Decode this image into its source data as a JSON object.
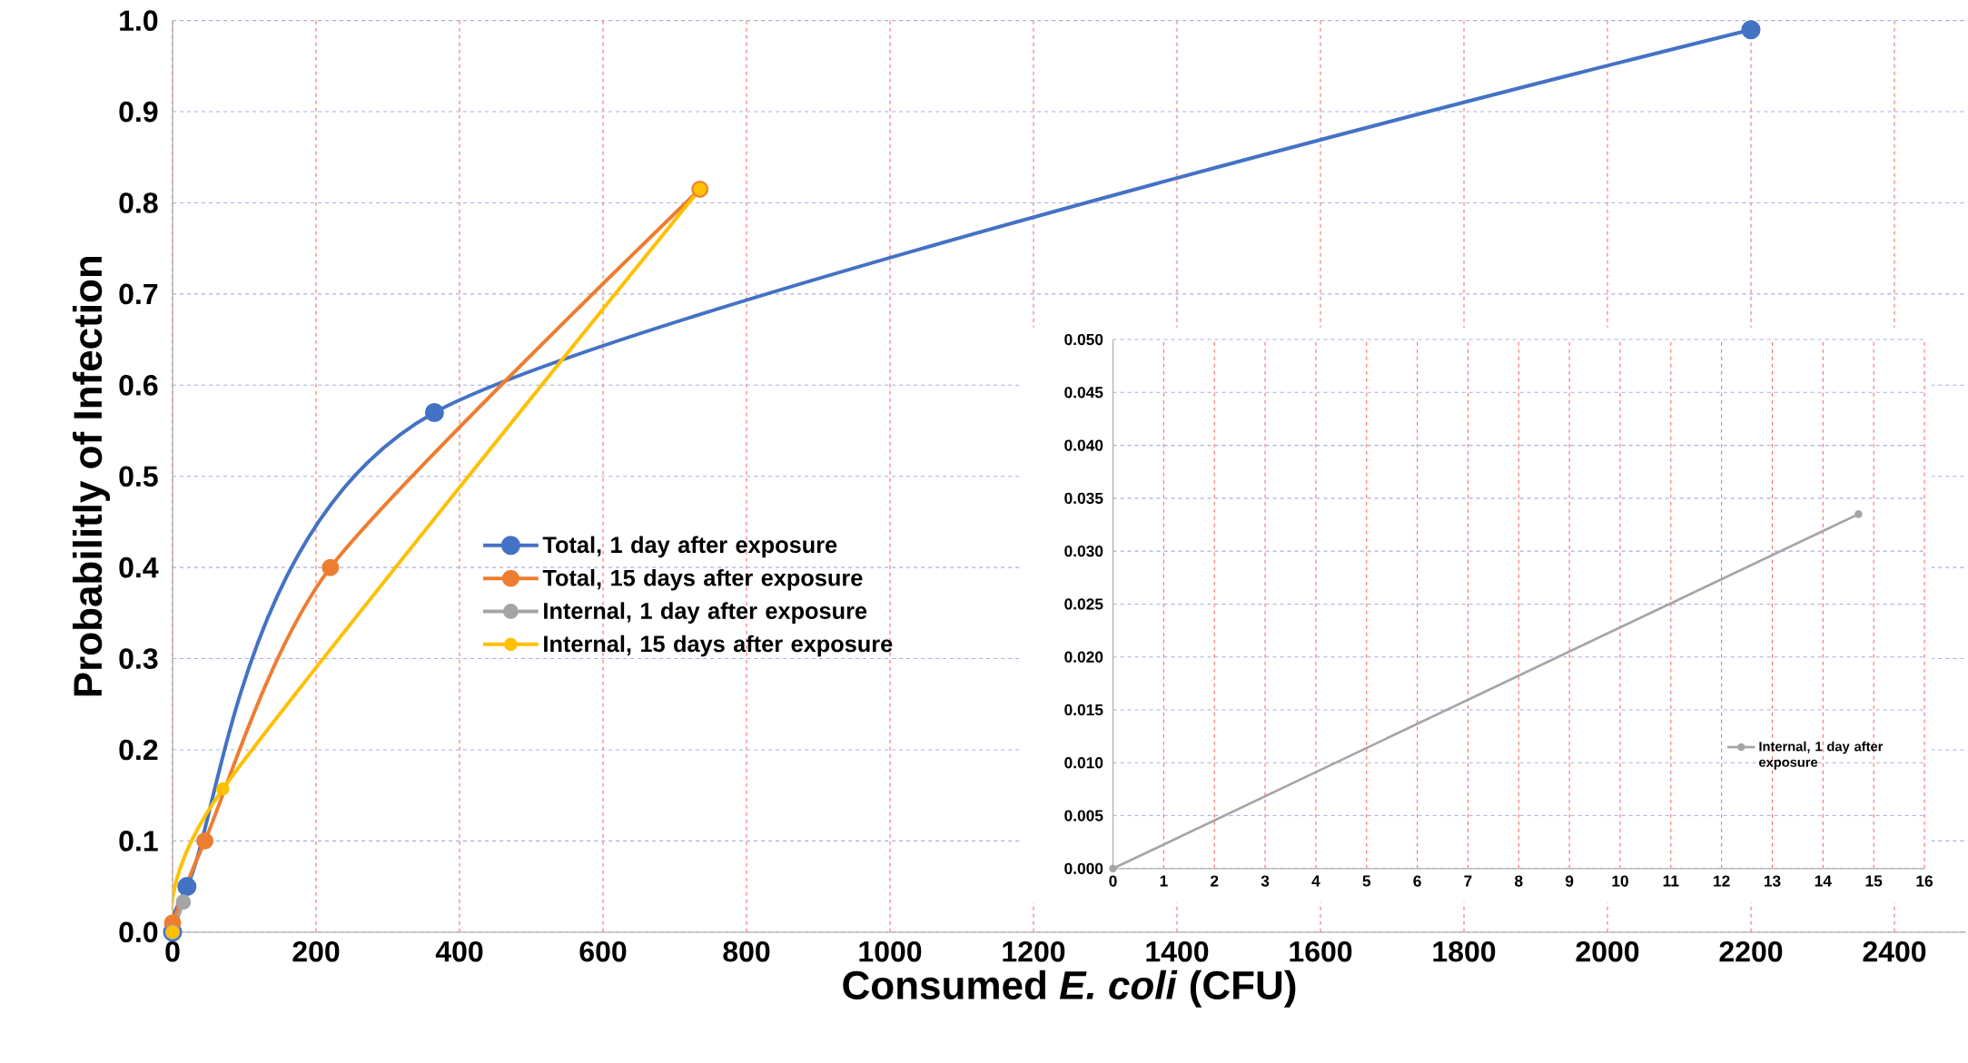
{
  "chart_data": [
    {
      "type": "line",
      "xlabel": "Consumed *E. coli* (CFU)",
      "ylabel": "Probabilitly of Infection",
      "xlim": [
        0,
        2500
      ],
      "xticks": [
        0,
        200,
        400,
        600,
        800,
        1000,
        1200,
        1400,
        1600,
        1800,
        2000,
        2200,
        2400
      ],
      "ylim": [
        0,
        1
      ],
      "yticks": [
        {
          "value": 0,
          "label": "0.0"
        },
        {
          "value": 0.1,
          "label": "0.1"
        },
        {
          "value": 0.2,
          "label": "0.2"
        },
        {
          "value": 0.3,
          "label": "0.3"
        },
        {
          "value": 0.4,
          "label": "0.4"
        },
        {
          "value": 0.5,
          "label": "0.5"
        },
        {
          "value": 0.6,
          "label": "0.6"
        },
        {
          "value": 0.7,
          "label": "0.7"
        },
        {
          "value": 0.8,
          "label": "0.8"
        },
        {
          "value": 0.9,
          "label": "0.9"
        },
        {
          "value": 1,
          "label": "1.0"
        }
      ],
      "grid": true,
      "legend": "center",
      "marker": "circle",
      "line_style": "solid",
      "series": [
        {
          "name": "Total, 1 day after exposure",
          "color": "#4472c4",
          "x": [
            0,
            20,
            365,
            2200
          ],
          "values": [
            0,
            0.05,
            0.57,
            0.99
          ]
        },
        {
          "name": "Total, 15 days after exposure",
          "color": "#ed7d31",
          "x": [
            0,
            45,
            220,
            735
          ],
          "values": [
            0.01,
            0.1,
            0.4,
            0.815
          ]
        },
        {
          "name": "Internal, 1 day after exposure",
          "color": "#a5a5a5",
          "x": [
            0,
            15
          ],
          "values": [
            0,
            0.033
          ]
        },
        {
          "name": "Internal, 15 days after exposure",
          "color": "#ffc000",
          "x": [
            0,
            70,
            735
          ],
          "values": [
            0,
            0.157,
            0.815
          ]
        }
      ]
    },
    {
      "type": "line",
      "xlim": [
        0,
        16
      ],
      "xticks": [
        0,
        1,
        2,
        3,
        4,
        5,
        6,
        7,
        8,
        9,
        10,
        11,
        12,
        13,
        14,
        15,
        16
      ],
      "ylim": [
        0,
        0.05
      ],
      "yticks": [
        {
          "value": 0,
          "label": "0.000"
        },
        {
          "value": 0.005,
          "label": "0.005"
        },
        {
          "value": 0.01,
          "label": "0.010"
        },
        {
          "value": 0.015,
          "label": "0.015"
        },
        {
          "value": 0.02,
          "label": "0.020"
        },
        {
          "value": 0.025,
          "label": "0.025"
        },
        {
          "value": 0.03,
          "label": "0.030"
        },
        {
          "value": 0.035,
          "label": "0.035"
        },
        {
          "value": 0.04,
          "label": "0.040"
        },
        {
          "value": 0.045,
          "label": "0.045"
        },
        {
          "value": 0.05,
          "label": "0.050"
        }
      ],
      "grid": true,
      "legend": "bottom right",
      "marker": "circle",
      "line_style": "solid",
      "series": [
        {
          "name": "Internal, 1 day after exposure",
          "color": "#a5a5a5",
          "x": [
            0,
            14.7
          ],
          "values": [
            0,
            0.0335
          ]
        }
      ]
    }
  ]
}
